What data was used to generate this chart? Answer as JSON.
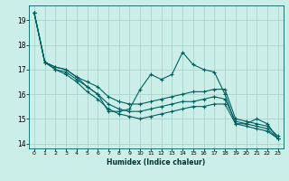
{
  "xlabel": "Humidex (Indice chaleur)",
  "background_color": "#cceee8",
  "grid_color": "#aad4cc",
  "line_color": "#006060",
  "xlim": [
    -0.5,
    23.5
  ],
  "ylim": [
    13.8,
    19.6
  ],
  "xticks": [
    0,
    1,
    2,
    3,
    4,
    5,
    6,
    7,
    8,
    9,
    10,
    11,
    12,
    13,
    14,
    15,
    16,
    17,
    18,
    19,
    20,
    21,
    22,
    23
  ],
  "yticks": [
    14,
    15,
    16,
    17,
    18,
    19
  ],
  "series": [
    [
      19.3,
      17.3,
      17.1,
      17.0,
      16.7,
      16.3,
      16.0,
      15.3,
      15.3,
      15.4,
      16.2,
      16.8,
      16.6,
      16.8,
      17.7,
      17.2,
      17.0,
      16.9,
      16.0,
      14.8,
      14.8,
      15.0,
      14.8,
      14.2
    ],
    [
      19.3,
      17.3,
      17.1,
      17.0,
      16.7,
      16.5,
      16.3,
      15.9,
      15.7,
      15.6,
      15.6,
      15.7,
      15.8,
      15.9,
      16.0,
      16.1,
      16.1,
      16.2,
      16.2,
      15.0,
      14.9,
      14.8,
      14.7,
      14.3
    ],
    [
      19.3,
      17.3,
      17.0,
      16.9,
      16.6,
      16.3,
      16.0,
      15.6,
      15.4,
      15.3,
      15.3,
      15.4,
      15.5,
      15.6,
      15.7,
      15.7,
      15.8,
      15.9,
      15.8,
      14.9,
      14.8,
      14.7,
      14.6,
      14.2
    ],
    [
      19.3,
      17.3,
      17.0,
      16.8,
      16.5,
      16.1,
      15.8,
      15.4,
      15.2,
      15.1,
      15.0,
      15.1,
      15.2,
      15.3,
      15.4,
      15.5,
      15.5,
      15.6,
      15.6,
      14.8,
      14.7,
      14.6,
      14.5,
      14.2
    ]
  ]
}
